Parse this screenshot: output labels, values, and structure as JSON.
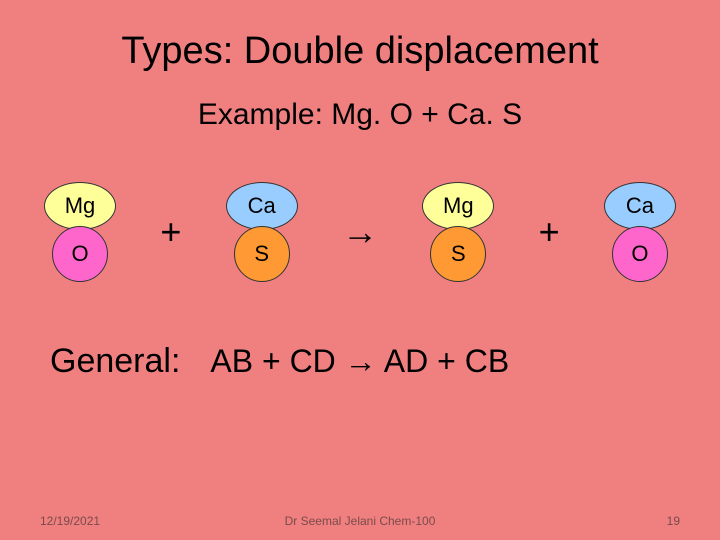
{
  "slide": {
    "background_color": "#f08080",
    "title": {
      "text": "Types: Double displacement",
      "fontsize": 38,
      "color": "#000000"
    },
    "subtitle": {
      "text": "Example: Mg. O + Ca. S",
      "fontsize": 30,
      "color": "#000000"
    },
    "reaction": {
      "operator_fontsize": 36,
      "operator_color": "#000000",
      "atom_label_fontsize": 22,
      "reactant1": {
        "top": {
          "label": "Mg",
          "fill": "#ffff99",
          "shape": "wide"
        },
        "bottom": {
          "label": "O",
          "fill": "#ff66cc",
          "shape": "round"
        }
      },
      "plus1": "+",
      "reactant2": {
        "top": {
          "label": "Ca",
          "fill": "#99ccff",
          "shape": "wide"
        },
        "bottom": {
          "label": "S",
          "fill": "#ff9933",
          "shape": "round"
        }
      },
      "arrow": "→",
      "product1": {
        "top": {
          "label": "Mg",
          "fill": "#ffff99",
          "shape": "wide"
        },
        "bottom": {
          "label": "S",
          "fill": "#ff9933",
          "shape": "round"
        }
      },
      "plus2": "+",
      "product2": {
        "top": {
          "label": "Ca",
          "fill": "#99ccff",
          "shape": "wide"
        },
        "bottom": {
          "label": "O",
          "fill": "#ff66cc",
          "shape": "round"
        }
      }
    },
    "general": {
      "label": "General:",
      "equation": "AB + CD → AD + CB",
      "label_fontsize": 34,
      "eq_fontsize": 32,
      "color": "#000000"
    },
    "footer": {
      "date": "12/19/2021",
      "center": "Dr Seemal Jelani    Chem-100",
      "page": "19",
      "color": "#7a4a4a",
      "fontsize": 12
    }
  }
}
